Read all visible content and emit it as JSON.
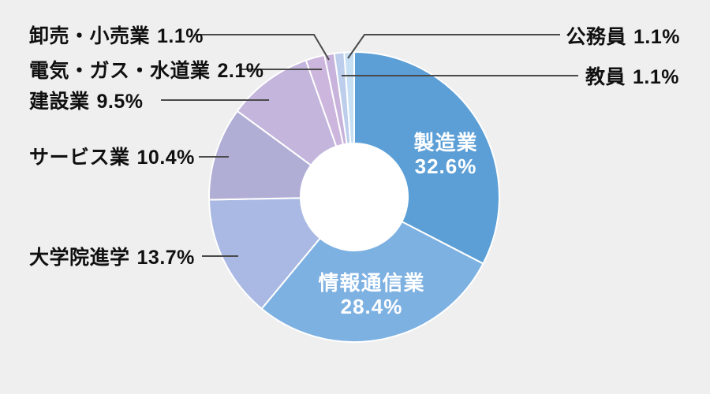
{
  "figure": {
    "background_color": "#EFEFEF",
    "hole_color": "#FFFFFF",
    "label_text_color": "#101010",
    "inside_label_text_color": "#FFFFFF",
    "leader_line_color": "#4A4A4A"
  },
  "chart_data": {
    "type": "pie",
    "subtype": "donut",
    "title": "",
    "unit": "%",
    "total": 100,
    "start_angle_deg_from_top": 0,
    "direction": "clockwise",
    "legend_position": "none",
    "segments": [
      {
        "id": "manufacturing",
        "label": "製造業",
        "value": 32.6,
        "pct_label": "32.6%",
        "color": "#5C9FD6",
        "label_placement": "inside"
      },
      {
        "id": "information-communication",
        "label": "情報通信業",
        "value": 28.4,
        "pct_label": "28.4%",
        "color": "#7DB1E2",
        "label_placement": "inside"
      },
      {
        "id": "graduate-school",
        "label": "大学院進学",
        "value": 13.7,
        "pct_label": "13.7%",
        "color": "#A9B9E3",
        "label_placement": "outside-left"
      },
      {
        "id": "services",
        "label": "サービス業",
        "value": 10.4,
        "pct_label": "10.4%",
        "color": "#B1AED6",
        "label_placement": "outside-left"
      },
      {
        "id": "construction",
        "label": "建設業",
        "value": 9.5,
        "pct_label": "9.5%",
        "color": "#C3B5DC",
        "label_placement": "outside-left"
      },
      {
        "id": "electricity-gas-water",
        "label": "電気・ガス・水道業",
        "value": 2.1,
        "pct_label": "2.1%",
        "color": "#CCB6DD",
        "label_placement": "outside-left"
      },
      {
        "id": "wholesale-retail",
        "label": "卸売・小売業",
        "value": 1.1,
        "pct_label": "1.1%",
        "color": "#C7B3DB",
        "label_placement": "outside-left"
      },
      {
        "id": "teachers",
        "label": "教員",
        "value": 1.1,
        "pct_label": "1.1%",
        "color": "#BCCEEB",
        "label_placement": "outside-right"
      },
      {
        "id": "civil-servants",
        "label": "公務員",
        "value": 1.1,
        "pct_label": "1.1%",
        "color": "#C7DFF4",
        "label_placement": "outside-right"
      }
    ]
  }
}
